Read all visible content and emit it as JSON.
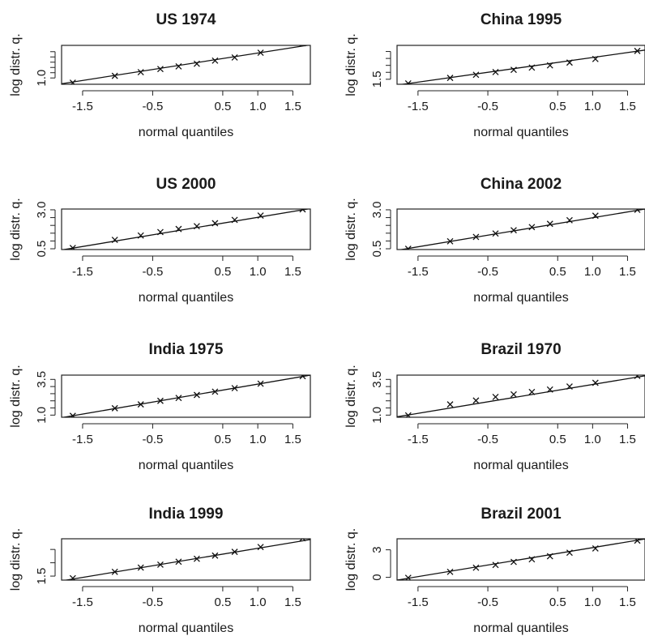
{
  "chart_data": [
    {
      "type": "scatter",
      "title": "US 1974",
      "xlabel": "normal quantiles",
      "ylabel": "log distr. q.",
      "xlim": [
        -1.8,
        1.75
      ],
      "ylim": [
        0.88,
        1.62
      ],
      "xticks": [
        -1.5,
        -0.5,
        0.5,
        1.0,
        1.5
      ],
      "xtick_labels": [
        "-1.5",
        "-0.5",
        "0.5",
        "1.0",
        "1.5"
      ],
      "yticks": [
        1.0,
        1.1,
        1.2,
        1.3,
        1.4,
        1.5
      ],
      "ytick_labels": [
        "1.0",
        "",
        "",
        "",
        "",
        ""
      ],
      "x": [
        -1.64,
        -1.04,
        -0.67,
        -0.39,
        -0.13,
        0.13,
        0.39,
        0.67,
        1.04,
        1.64
      ],
      "y": [
        0.91,
        1.04,
        1.11,
        1.17,
        1.22,
        1.27,
        1.33,
        1.39,
        1.48,
        1.66
      ],
      "fit": {
        "x": [
          -1.8,
          1.75
        ],
        "y": [
          0.89,
          1.63
        ]
      }
    },
    {
      "type": "scatter",
      "title": "China 1995",
      "xlabel": "normal quantiles",
      "ylabel": "log distr. q.",
      "xlim": [
        -1.8,
        1.75
      ],
      "ylim": [
        1.32,
        2.72
      ],
      "xticks": [
        -1.5,
        -0.5,
        0.5,
        1.0,
        1.5
      ],
      "xtick_labels": [
        "-1.5",
        "-0.5",
        "0.5",
        "1.0",
        "1.5"
      ],
      "yticks": [
        1.5,
        1.75,
        2.0,
        2.25,
        2.5
      ],
      "ytick_labels": [
        "1.5",
        "",
        "",
        "",
        ""
      ],
      "x": [
        -1.64,
        -1.04,
        -0.67,
        -0.39,
        -0.13,
        0.13,
        0.39,
        0.67,
        1.04,
        1.64
      ],
      "y": [
        1.35,
        1.55,
        1.66,
        1.76,
        1.84,
        1.92,
        2.0,
        2.1,
        2.23,
        2.52
      ],
      "fit": {
        "x": [
          -1.8,
          1.75
        ],
        "y": [
          1.29,
          2.55
        ]
      }
    },
    {
      "type": "scatter",
      "title": "US 2000",
      "xlabel": "normal quantiles",
      "ylabel": "log distr. q.",
      "xlim": [
        -1.8,
        1.75
      ],
      "ylim": [
        0.45,
        3.05
      ],
      "xticks": [
        -1.5,
        -0.5,
        0.5,
        1.0,
        1.5
      ],
      "xtick_labels": [
        "-1.5",
        "-0.5",
        "0.5",
        "1.0",
        "1.5"
      ],
      "yticks": [
        0.5,
        1.0,
        1.5,
        2.0,
        2.5,
        3.0
      ],
      "ytick_labels": [
        "0.5",
        "",
        "",
        "",
        "",
        "3.0"
      ],
      "x": [
        -1.64,
        -1.04,
        -0.67,
        -0.39,
        -0.13,
        0.13,
        0.39,
        0.67,
        1.04,
        1.64
      ],
      "y": [
        0.55,
        1.07,
        1.35,
        1.57,
        1.77,
        1.95,
        2.14,
        2.35,
        2.63,
        3.03
      ],
      "fit": {
        "x": [
          -1.8,
          1.75
        ],
        "y": [
          0.42,
          3.08
        ]
      }
    },
    {
      "type": "scatter",
      "title": "China 2002",
      "xlabel": "normal quantiles",
      "ylabel": "log distr. q.",
      "xlim": [
        -1.8,
        1.75
      ],
      "ylim": [
        0.45,
        3.05
      ],
      "xticks": [
        -1.5,
        -0.5,
        0.5,
        1.0,
        1.5
      ],
      "xtick_labels": [
        "-1.5",
        "-0.5",
        "0.5",
        "1.0",
        "1.5"
      ],
      "yticks": [
        0.5,
        1.0,
        1.5,
        2.0,
        2.5,
        3.0
      ],
      "ytick_labels": [
        "0.5",
        "",
        "",
        "",
        "",
        "3.0"
      ],
      "x": [
        -1.64,
        -1.04,
        -0.67,
        -0.39,
        -0.13,
        0.13,
        0.39,
        0.67,
        1.04,
        1.64
      ],
      "y": [
        0.5,
        0.98,
        1.26,
        1.48,
        1.69,
        1.89,
        2.1,
        2.33,
        2.62,
        3.0
      ],
      "fit": {
        "x": [
          -1.8,
          1.75
        ],
        "y": [
          0.4,
          3.05
        ]
      }
    },
    {
      "type": "scatter",
      "title": "India 1975",
      "xlabel": "normal quantiles",
      "ylabel": "log distr. q.",
      "xlim": [
        -1.8,
        1.75
      ],
      "ylim": [
        0.85,
        3.8
      ],
      "xticks": [
        -1.5,
        -0.5,
        0.5,
        1.0,
        1.5
      ],
      "xtick_labels": [
        "-1.5",
        "-0.5",
        "0.5",
        "1.0",
        "1.5"
      ],
      "yticks": [
        1.0,
        1.5,
        2.0,
        2.5,
        3.0,
        3.5
      ],
      "ytick_labels": [
        "1.0",
        "",
        "",
        "",
        "",
        "3.5"
      ],
      "x": [
        -1.64,
        -1.04,
        -0.67,
        -0.39,
        -0.13,
        0.13,
        0.39,
        0.67,
        1.04,
        1.64
      ],
      "y": [
        0.95,
        1.48,
        1.75,
        2.0,
        2.2,
        2.41,
        2.64,
        2.89,
        3.2,
        3.73
      ],
      "fit": {
        "x": [
          -1.8,
          1.75
        ],
        "y": [
          0.82,
          3.8
        ]
      }
    },
    {
      "type": "scatter",
      "title": "Brazil 1970",
      "xlabel": "normal quantiles",
      "ylabel": "log distr. q.",
      "xlim": [
        -1.8,
        1.75
      ],
      "ylim": [
        0.85,
        3.8
      ],
      "xticks": [
        -1.5,
        -0.5,
        0.5,
        1.0,
        1.5
      ],
      "xtick_labels": [
        "-1.5",
        "-0.5",
        "0.5",
        "1.0",
        "1.5"
      ],
      "yticks": [
        1.0,
        1.5,
        2.0,
        2.5,
        3.0,
        3.5
      ],
      "ytick_labels": [
        "1.0",
        "",
        "",
        "",
        "",
        "3.5"
      ],
      "x": [
        -1.64,
        -1.04,
        -0.67,
        -0.39,
        -0.13,
        0.13,
        0.39,
        0.67,
        1.04,
        1.64
      ],
      "y": [
        0.98,
        1.75,
        2.02,
        2.27,
        2.45,
        2.62,
        2.79,
        3.0,
        3.26,
        3.75
      ],
      "fit": {
        "x": [
          -1.8,
          1.75
        ],
        "y": [
          0.88,
          3.75
        ]
      }
    },
    {
      "type": "scatter",
      "title": "India 1999",
      "xlabel": "normal quantiles",
      "ylabel": "log distr. q.",
      "xlim": [
        -1.8,
        1.75
      ],
      "ylim": [
        1.35,
        2.9
      ],
      "xticks": [
        -1.5,
        -0.5,
        0.5,
        1.0,
        1.5
      ],
      "xtick_labels": [
        "-1.5",
        "-0.5",
        "0.5",
        "1.0",
        "1.5"
      ],
      "yticks": [
        1.5,
        2.0,
        2.5
      ],
      "ytick_labels": [
        "1.5",
        "",
        ""
      ],
      "x": [
        -1.64,
        -1.04,
        -0.67,
        -0.39,
        -0.13,
        0.13,
        0.39,
        0.67,
        1.04,
        1.64
      ],
      "y": [
        1.42,
        1.66,
        1.82,
        1.93,
        2.04,
        2.15,
        2.27,
        2.41,
        2.59,
        2.92
      ],
      "fit": {
        "x": [
          -1.8,
          1.75
        ],
        "y": [
          1.32,
          2.87
        ]
      }
    },
    {
      "type": "scatter",
      "title": "Brazil 2001",
      "xlabel": "normal quantiles",
      "ylabel": "log distr. q.",
      "xlim": [
        -1.8,
        1.75
      ],
      "ylim": [
        -0.3,
        4.2
      ],
      "xticks": [
        -1.5,
        -0.5,
        0.5,
        1.0,
        1.5
      ],
      "xtick_labels": [
        "-1.5",
        "-0.5",
        "0.5",
        "1.0",
        "1.5"
      ],
      "yticks": [
        0,
        3
      ],
      "ytick_labels": [
        "0",
        "3"
      ],
      "x": [
        -1.64,
        -1.04,
        -0.67,
        -0.39,
        -0.13,
        0.13,
        0.39,
        0.67,
        1.04,
        1.64
      ],
      "y": [
        -0.05,
        0.6,
        1.05,
        1.35,
        1.68,
        1.97,
        2.3,
        2.68,
        3.15,
        4.0
      ],
      "fit": {
        "x": [
          -1.8,
          1.75
        ],
        "y": [
          -0.3,
          4.18
        ]
      }
    }
  ]
}
